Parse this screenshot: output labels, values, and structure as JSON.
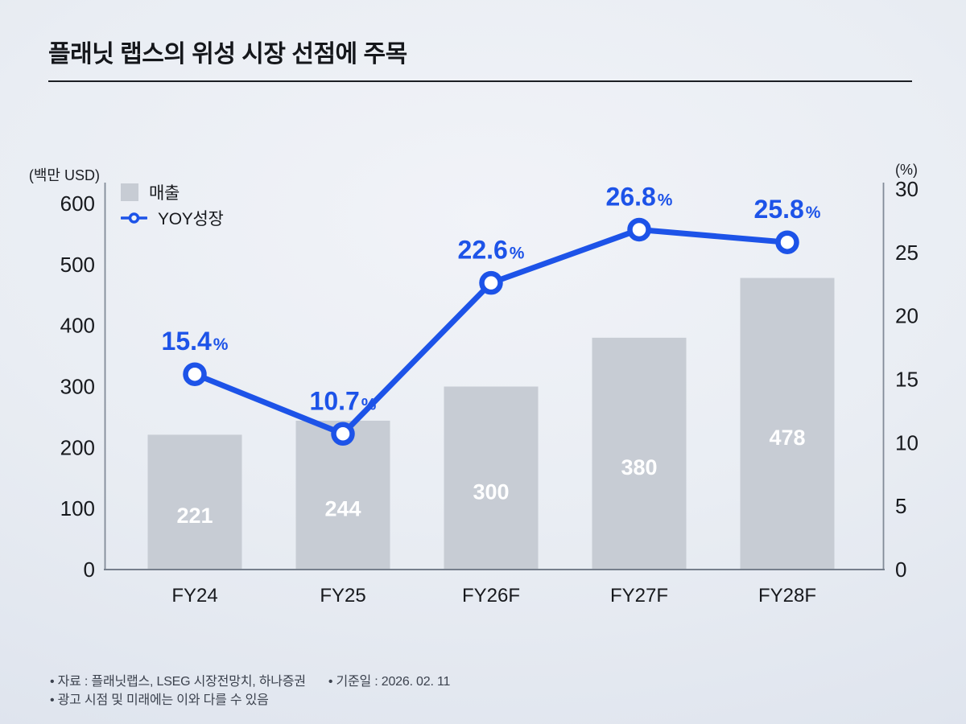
{
  "title": "플래닛 랩스의 위성 시장 선점에 주목",
  "legend": {
    "bar_label": "매출",
    "line_label": "YOY성장"
  },
  "chart_data": {
    "type": "bar+line combo",
    "categories": [
      "FY24",
      "FY25",
      "FY26F",
      "FY27F",
      "FY28F"
    ],
    "series": [
      {
        "name": "매출",
        "type": "bar",
        "axis": "left",
        "values": [
          221,
          244,
          300,
          380,
          478
        ]
      },
      {
        "name": "YOY성장",
        "type": "line",
        "axis": "right",
        "unit": "%",
        "values": [
          15.4,
          10.7,
          22.6,
          26.8,
          25.8
        ]
      }
    ],
    "left_axis": {
      "unit_label": "(백만 USD)",
      "ticks": [
        0,
        100,
        200,
        300,
        400,
        500,
        600
      ],
      "range": [
        0,
        600
      ]
    },
    "right_axis": {
      "unit_label": "(%)",
      "ticks": [
        0,
        5,
        10,
        15,
        20,
        25,
        30
      ],
      "range": [
        0,
        30
      ]
    },
    "legend_position": "top-left",
    "grid": false
  },
  "footer": {
    "source_note": "• 자료 : 플래닛랩스, LSEG 시장전망치, 하나증권",
    "date_note": "• 기준일 : 2026. 02. 11",
    "disclaimer": "• 광고 시점 및 미래에는 이와 다를 수 있음"
  },
  "colors": {
    "accent_blue": "#1d53e8",
    "bar_gray": "#c7ccd4",
    "axis_gray": "#828b98",
    "text_black": "#17191d",
    "footer_gray": "#3c424e",
    "bar_value_white": "#ffffff"
  }
}
